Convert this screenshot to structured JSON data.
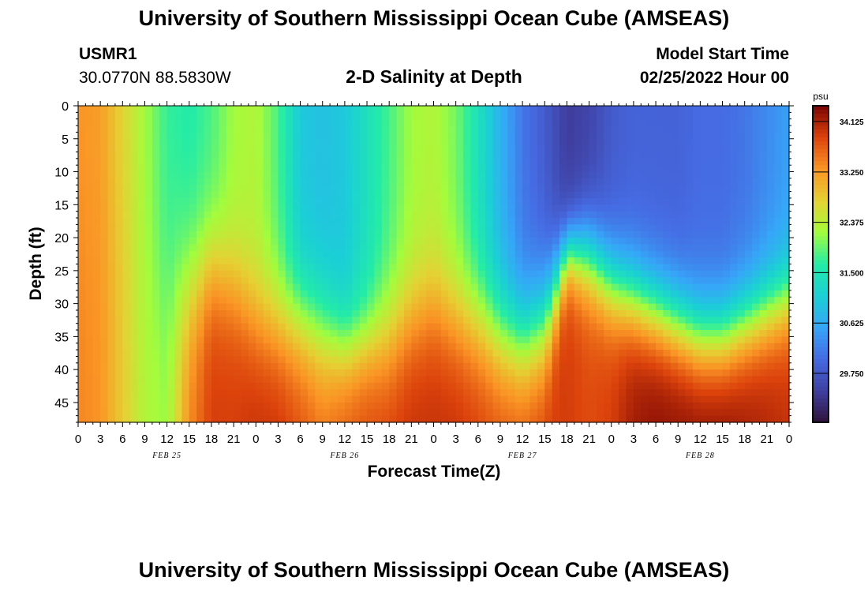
{
  "header": {
    "title": "University of Southern Mississippi Ocean Cube (AMSEAS)",
    "station_id": "USMR1",
    "station_coords": "30.0770N  88.5830W",
    "subtitle": "2-D Salinity at Depth",
    "model_start_label": "Model Start Time",
    "model_start_value": "02/25/2022 Hour 00"
  },
  "footer": {
    "title": "University of Southern Mississippi Ocean Cube (AMSEAS)"
  },
  "chart_data": {
    "type": "heatmap",
    "title": "2-D Salinity at Depth",
    "xlabel": "Forecast Time(Z)",
    "ylabel": "Depth (ft)",
    "x_hours_range": [
      0,
      96
    ],
    "x_tick_step_hours": 3,
    "x_tick_labels": [
      "0",
      "3",
      "6",
      "9",
      "12",
      "15",
      "18",
      "21",
      "0",
      "3",
      "6",
      "9",
      "12",
      "15",
      "18",
      "21",
      "0",
      "3",
      "6",
      "9",
      "12",
      "15",
      "18",
      "21",
      "0",
      "3",
      "6",
      "9",
      "12",
      "15",
      "18",
      "21",
      "0"
    ],
    "date_labels": [
      {
        "hour": 12,
        "label": "FEB 25"
      },
      {
        "hour": 36,
        "label": "FEB 26"
      },
      {
        "hour": 60,
        "label": "FEB 27"
      },
      {
        "hour": 84,
        "label": "FEB 28"
      }
    ],
    "ylim": [
      0,
      48
    ],
    "y_ticks": [
      0,
      5,
      10,
      15,
      20,
      25,
      30,
      35,
      40,
      45
    ],
    "y_tick_labels": [
      "0",
      "5",
      "10",
      "15",
      "20",
      "25",
      "30",
      "35",
      "40",
      "45"
    ],
    "colorbar": {
      "unit": "psu",
      "range": [
        28.9,
        34.4
      ],
      "ticks": [
        34.125,
        33.25,
        32.375,
        31.5,
        30.625,
        29.75
      ],
      "tick_labels": [
        "34.125",
        "33.250",
        "32.375",
        "31.500",
        "30.625",
        "29.750"
      ]
    },
    "columns": [
      {
        "hour": 0,
        "surface": 33.3,
        "bottom": 33.4,
        "thermocline": 20,
        "width": 8
      },
      {
        "hour": 3,
        "surface": 33.2,
        "bottom": 33.3,
        "thermocline": 20,
        "width": 8
      },
      {
        "hour": 6,
        "surface": 32.7,
        "bottom": 32.8,
        "thermocline": 20,
        "width": 8
      },
      {
        "hour": 9,
        "surface": 32.2,
        "bottom": 32.3,
        "thermocline": 25,
        "width": 8
      },
      {
        "hour": 12,
        "surface": 31.7,
        "bottom": 32.2,
        "thermocline": 30,
        "width": 8
      },
      {
        "hour": 15,
        "surface": 31.6,
        "bottom": 33.4,
        "thermocline": 28,
        "width": 6
      },
      {
        "hour": 18,
        "surface": 31.8,
        "bottom": 33.9,
        "thermocline": 24,
        "width": 5
      },
      {
        "hour": 21,
        "surface": 32.2,
        "bottom": 33.9,
        "thermocline": 27,
        "width": 5
      },
      {
        "hour": 24,
        "surface": 32.3,
        "bottom": 34.0,
        "thermocline": 32,
        "width": 5
      },
      {
        "hour": 27,
        "surface": 31.8,
        "bottom": 34.0,
        "thermocline": 33,
        "width": 5
      },
      {
        "hour": 30,
        "surface": 31.0,
        "bottom": 33.8,
        "thermocline": 33,
        "width": 5
      },
      {
        "hour": 33,
        "surface": 30.9,
        "bottom": 33.6,
        "thermocline": 35,
        "width": 5
      },
      {
        "hour": 36,
        "surface": 31.0,
        "bottom": 33.7,
        "thermocline": 37,
        "width": 4
      },
      {
        "hour": 39,
        "surface": 31.4,
        "bottom": 33.8,
        "thermocline": 36,
        "width": 4
      },
      {
        "hour": 42,
        "surface": 31.8,
        "bottom": 33.9,
        "thermocline": 35,
        "width": 5
      },
      {
        "hour": 45,
        "surface": 32.2,
        "bottom": 34.0,
        "thermocline": 32,
        "width": 5
      },
      {
        "hour": 48,
        "surface": 32.3,
        "bottom": 34.0,
        "thermocline": 30,
        "width": 5
      },
      {
        "hour": 51,
        "surface": 32.0,
        "bottom": 34.0,
        "thermocline": 32,
        "width": 5
      },
      {
        "hour": 54,
        "surface": 31.4,
        "bottom": 33.9,
        "thermocline": 33,
        "width": 5
      },
      {
        "hour": 57,
        "surface": 30.7,
        "bottom": 33.8,
        "thermocline": 35,
        "width": 5
      },
      {
        "hour": 60,
        "surface": 30.1,
        "bottom": 33.8,
        "thermocline": 36,
        "width": 5
      },
      {
        "hour": 63,
        "surface": 29.8,
        "bottom": 33.9,
        "thermocline": 33,
        "width": 5
      },
      {
        "hour": 66,
        "surface": 29.4,
        "bottom": 33.9,
        "thermocline": 22,
        "width": 3
      },
      {
        "hour": 69,
        "surface": 29.5,
        "bottom": 33.8,
        "thermocline": 23,
        "width": 4
      },
      {
        "hour": 72,
        "surface": 29.8,
        "bottom": 33.9,
        "thermocline": 27,
        "width": 4
      },
      {
        "hour": 75,
        "surface": 29.9,
        "bottom": 34.2,
        "thermocline": 29,
        "width": 4
      },
      {
        "hour": 78,
        "surface": 29.9,
        "bottom": 34.3,
        "thermocline": 31,
        "width": 4
      },
      {
        "hour": 81,
        "surface": 29.9,
        "bottom": 34.3,
        "thermocline": 33,
        "width": 4
      },
      {
        "hour": 84,
        "surface": 30.0,
        "bottom": 34.3,
        "thermocline": 35,
        "width": 4
      },
      {
        "hour": 87,
        "surface": 30.0,
        "bottom": 34.3,
        "thermocline": 35,
        "width": 4
      },
      {
        "hour": 90,
        "surface": 30.1,
        "bottom": 34.2,
        "thermocline": 33,
        "width": 4
      },
      {
        "hour": 93,
        "surface": 30.3,
        "bottom": 34.1,
        "thermocline": 31,
        "width": 4
      },
      {
        "hour": 96,
        "surface": 30.5,
        "bottom": 34.0,
        "thermocline": 29,
        "width": 4
      }
    ]
  }
}
